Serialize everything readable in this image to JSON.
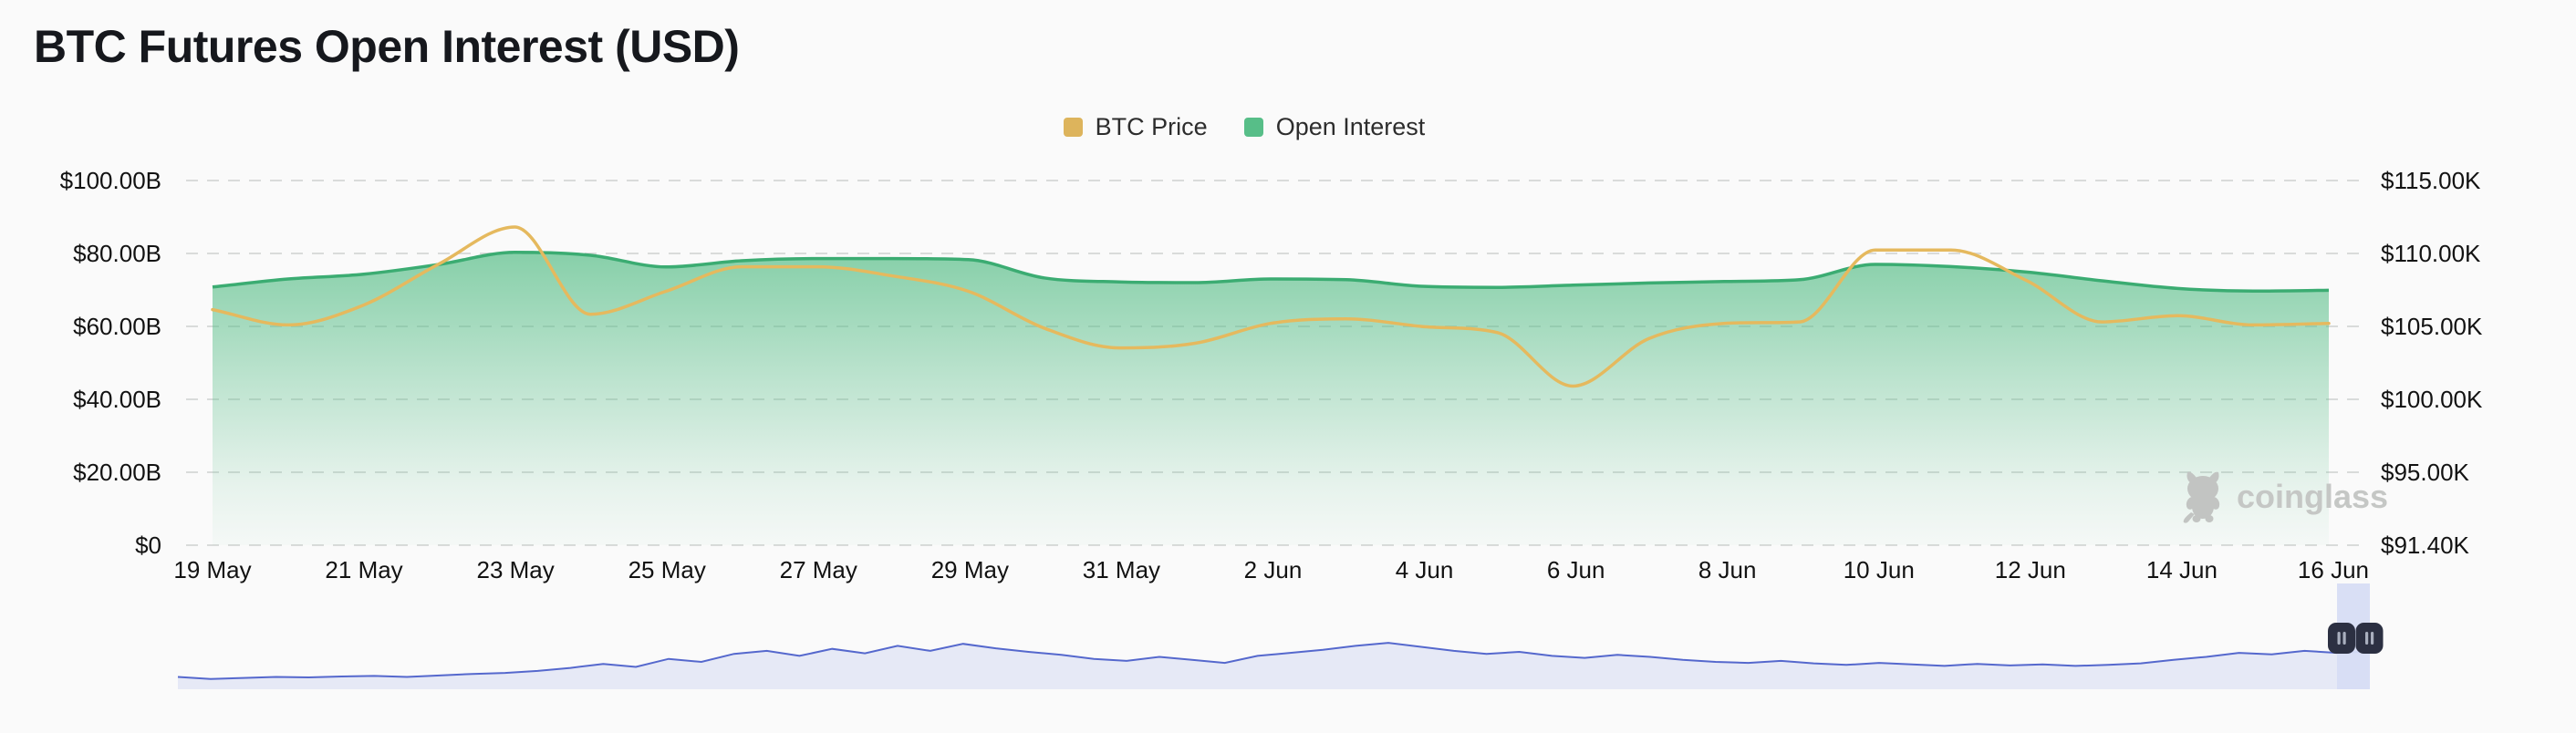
{
  "title": "BTC Futures Open Interest (USD)",
  "legend": {
    "items": [
      {
        "label": "BTC Price",
        "color": "#DDB45C"
      },
      {
        "label": "Open Interest",
        "color": "#57BE88"
      }
    ]
  },
  "watermark": {
    "text": "coinglass"
  },
  "axes": {
    "left_labels": [
      "$100.00B",
      "$80.00B",
      "$60.00B",
      "$40.00B",
      "$20.00B",
      "$0"
    ],
    "right_labels": [
      "$115.00K",
      "$110.00K",
      "$105.00K",
      "$100.00K",
      "$95.00K",
      "$91.40K"
    ],
    "x_labels": [
      "19 May",
      "21 May",
      "23 May",
      "25 May",
      "27 May",
      "29 May",
      "31 May",
      "2 Jun",
      "4 Jun",
      "6 Jun",
      "8 Jun",
      "10 Jun",
      "12 Jun",
      "14 Jun",
      "16 Jun"
    ]
  },
  "chart_data": {
    "type": "area",
    "title": "BTC Futures Open Interest (USD)",
    "x": [
      "19 May",
      "20 May",
      "21 May",
      "22 May",
      "23 May",
      "24 May",
      "25 May",
      "26 May",
      "27 May",
      "28 May",
      "29 May",
      "30 May",
      "31 May",
      "1 Jun",
      "2 Jun",
      "3 Jun",
      "4 Jun",
      "5 Jun",
      "6 Jun",
      "7 Jun",
      "8 Jun",
      "9 Jun",
      "10 Jun",
      "11 Jun",
      "12 Jun",
      "13 Jun",
      "14 Jun",
      "15 Jun",
      "16 Jun"
    ],
    "series": [
      {
        "name": "BTC Price",
        "type": "line",
        "axis": "right",
        "unit": "USD thousands",
        "color": "#E5B95E",
        "values": [
          106.5,
          105.5,
          106.8,
          109.5,
          111.9,
          106.2,
          107.7,
          109.3,
          109.3,
          108.7,
          107.7,
          105.3,
          104.0,
          104.3,
          105.6,
          105.9,
          105.4,
          105.0,
          101.5,
          104.6,
          105.6,
          105.7,
          110.4,
          110.4,
          108.4,
          105.7,
          106.1,
          105.5,
          105.6
        ]
      },
      {
        "name": "Open Interest",
        "type": "area",
        "axis": "left",
        "unit": "USD billions",
        "color": "#57BE88",
        "values": [
          70.8,
          73.0,
          74.3,
          77.0,
          80.3,
          79.5,
          76.3,
          78.0,
          78.6,
          78.6,
          78.3,
          73.3,
          72.2,
          72.0,
          73.0,
          72.8,
          71.0,
          70.7,
          71.3,
          71.9,
          72.3,
          72.8,
          77.0,
          76.4,
          74.9,
          72.5,
          70.4,
          69.7,
          69.9
        ]
      }
    ],
    "left_axis": {
      "min": 0,
      "max": 100,
      "unit": "B",
      "gridlines": true
    },
    "right_axis": {
      "min": 91.4,
      "max": 115,
      "unit": "K",
      "gridlines": false
    },
    "grid": "dashed horizontal",
    "legend_position": "top-center"
  },
  "navigator": {
    "description": "range scrollbar mini price sparkline",
    "spark": [
      0.1,
      0.06,
      0.08,
      0.1,
      0.09,
      0.11,
      0.12,
      0.1,
      0.13,
      0.16,
      0.18,
      0.22,
      0.28,
      0.36,
      0.3,
      0.46,
      0.4,
      0.56,
      0.62,
      0.52,
      0.66,
      0.57,
      0.72,
      0.62,
      0.76,
      0.67,
      0.6,
      0.54,
      0.46,
      0.42,
      0.5,
      0.44,
      0.38,
      0.52,
      0.58,
      0.64,
      0.72,
      0.78,
      0.7,
      0.62,
      0.56,
      0.6,
      0.52,
      0.48,
      0.54,
      0.5,
      0.44,
      0.4,
      0.38,
      0.42,
      0.37,
      0.34,
      0.38,
      0.35,
      0.32,
      0.36,
      0.33,
      0.35,
      0.32,
      0.34,
      0.37,
      0.44,
      0.5,
      0.58,
      0.55,
      0.62,
      0.58,
      0.61
    ],
    "colors": {
      "line": "#5568CD",
      "fill": "#E6E9F6",
      "band": "#D7DDF4",
      "handle": "#2C3042"
    }
  },
  "colors": {
    "background": "#FAFAFA",
    "gridline": "#D9DBDA",
    "oi_line": "#3BAC72",
    "oi_fill": "#58BE88",
    "btc_line": "#E5B95E",
    "text": "#121212"
  }
}
